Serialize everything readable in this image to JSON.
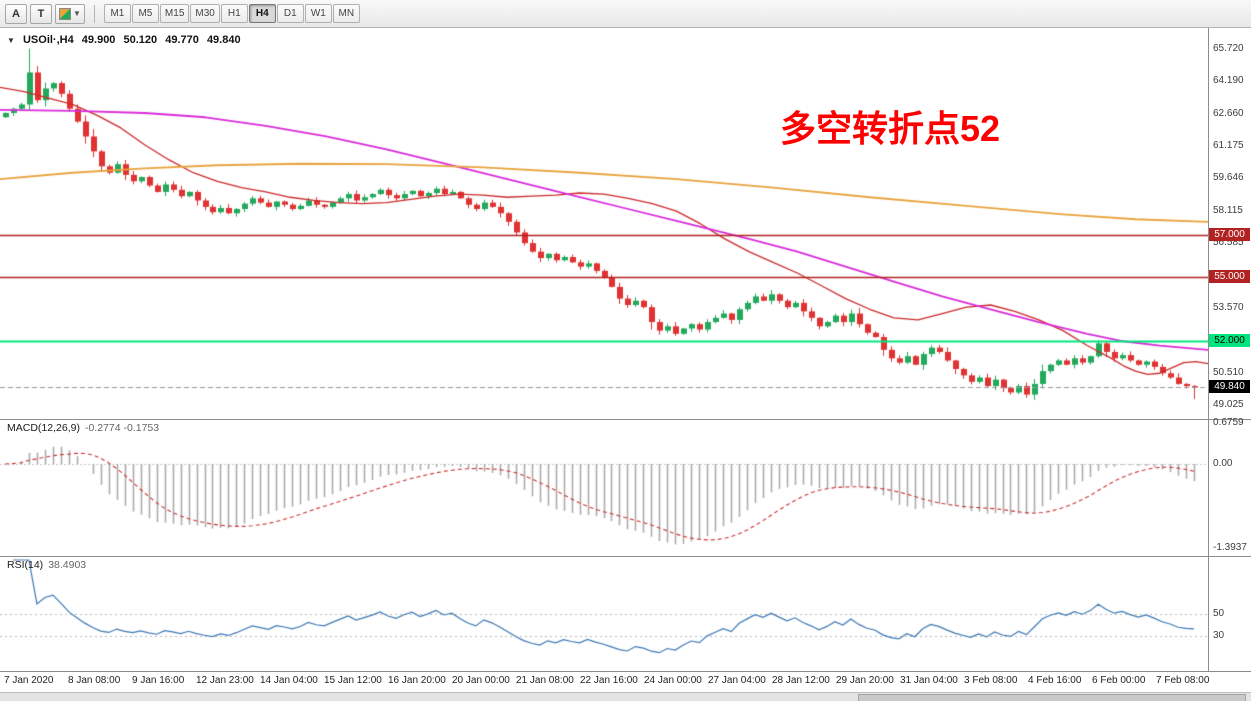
{
  "toolbar": {
    "left_buttons": [
      {
        "id": "a",
        "label": "A"
      },
      {
        "id": "t",
        "label": "T"
      }
    ],
    "timeframes": [
      "M1",
      "M5",
      "M15",
      "M30",
      "H1",
      "H4",
      "D1",
      "W1",
      "MN"
    ],
    "active_timeframe": "H4"
  },
  "chart": {
    "header": {
      "collapse_icon": "▼",
      "symbol": "USOil·,H4",
      "open": "49.900",
      "high": "50.120",
      "low": "49.770",
      "close": "49.840"
    },
    "annotation": "多空转折点52",
    "annotation_color": "#ff0000",
    "price_axis_labels": [
      "65.720",
      "64.190",
      "62.660",
      "61.175",
      "59.646",
      "58.115",
      "56.585",
      "55.055",
      "53.570",
      "52.040",
      "50.510",
      "49.025"
    ],
    "hlines": [
      {
        "price": 57.0,
        "label": "57.000",
        "color": "#b22222",
        "text_color": "#ffffff",
        "line_width": 1.4
      },
      {
        "price": 55.0,
        "label": "55.000",
        "color": "#b22222",
        "text_color": "#ffffff",
        "line_width": 1.4
      },
      {
        "price": 52.0,
        "label": "52.000",
        "color": "#00e57d",
        "text_color": "#000000",
        "line_width": 2.2
      }
    ],
    "current_price": {
      "value": 49.84,
      "label": "49.840",
      "bg": "#000000",
      "text_color": "#ffffff"
    }
  },
  "macd": {
    "label": "MACD(12,26,9)",
    "values_text": "-0.2774 -0.1753",
    "axis_labels": [
      "0.6759",
      "0.00",
      "-1.3937"
    ],
    "fast": 12,
    "slow": 26,
    "signal": 9,
    "histogram_color": "#ababab",
    "signal_color": "#cc3333"
  },
  "rsi": {
    "label": "RSI(14)",
    "value_text": "38.4903",
    "period": 14,
    "levels": [
      50,
      30
    ],
    "line_color": "#3c78b4"
  },
  "time_axis": [
    "7 Jan 2020",
    "8 Jan 08:00",
    "9 Jan 16:00",
    "12 Jan 23:00",
    "14 Jan 04:00",
    "15 Jan 12:00",
    "16 Jan 20:00",
    "20 Jan 00:00",
    "21 Jan 08:00",
    "22 Jan 16:00",
    "24 Jan 00:00",
    "27 Jan 04:00",
    "28 Jan 12:00",
    "29 Jan 20:00",
    "31 Jan 04:00",
    "3 Feb 08:00",
    "4 Feb 16:00",
    "6 Feb 00:00",
    "7 Feb 08:00"
  ],
  "chart_data": {
    "type": "candlestick",
    "symbol": "USOil",
    "timeframe": "H4",
    "price_range": {
      "top": 66.45,
      "bottom": 48.45
    },
    "first_open": 62.5,
    "up_color": "#22a95c",
    "down_color": "#e03232",
    "candles_close": [
      62.7,
      62.9,
      63.1,
      64.6,
      63.3,
      63.85,
      64.1,
      63.6,
      62.9,
      62.3,
      61.6,
      60.9,
      60.2,
      59.9,
      60.3,
      59.8,
      59.5,
      59.7,
      59.3,
      59.0,
      59.35,
      59.1,
      58.8,
      59.0,
      58.6,
      58.3,
      58.05,
      58.25,
      58.0,
      58.2,
      58.45,
      58.7,
      58.5,
      58.3,
      58.55,
      58.4,
      58.2,
      58.35,
      58.6,
      58.4,
      58.3,
      58.5,
      58.7,
      58.9,
      58.6,
      58.75,
      58.9,
      59.1,
      58.85,
      58.7,
      58.9,
      59.05,
      58.8,
      58.95,
      59.15,
      58.9,
      59.0,
      58.7,
      58.4,
      58.2,
      58.5,
      58.3,
      58.0,
      57.6,
      57.1,
      56.6,
      56.2,
      55.9,
      56.1,
      55.8,
      55.95,
      55.7,
      55.5,
      55.65,
      55.3,
      55.0,
      54.55,
      54.0,
      53.7,
      53.9,
      53.6,
      52.9,
      52.5,
      52.7,
      52.35,
      52.6,
      52.8,
      52.55,
      52.9,
      53.1,
      53.3,
      53.0,
      53.5,
      53.8,
      54.1,
      53.9,
      54.2,
      53.9,
      53.6,
      53.8,
      53.4,
      53.1,
      52.7,
      52.9,
      53.2,
      52.9,
      53.3,
      52.8,
      52.4,
      52.2,
      51.6,
      51.2,
      51.0,
      51.3,
      50.9,
      51.4,
      51.7,
      51.5,
      51.1,
      50.7,
      50.4,
      50.1,
      50.3,
      49.9,
      50.2,
      49.8,
      49.6,
      49.9,
      49.5,
      50.0,
      50.6,
      50.9,
      51.1,
      50.9,
      51.2,
      51.0,
      51.3,
      51.9,
      51.5,
      51.2,
      51.35,
      51.1,
      50.9,
      51.05,
      50.8,
      50.5,
      50.3,
      50.0,
      49.9,
      49.84
    ],
    "wick_overrides": {
      "3": {
        "h": 65.72
      },
      "4": {
        "h": 64.9
      },
      "128": {
        "l": 49.35
      },
      "137": {
        "h": 52.05
      },
      "149": {
        "l": 49.3
      }
    },
    "moving_averages": [
      {
        "name": "ma-fast",
        "color": "#cc2a2a",
        "width": 1.3,
        "points": [
          [
            0.0,
            63.9
          ],
          [
            0.02,
            63.7
          ],
          [
            0.04,
            63.4
          ],
          [
            0.06,
            63.1
          ],
          [
            0.08,
            62.6
          ],
          [
            0.1,
            62.0
          ],
          [
            0.12,
            61.2
          ],
          [
            0.14,
            60.5
          ],
          [
            0.16,
            59.9
          ],
          [
            0.18,
            59.5
          ],
          [
            0.2,
            59.2
          ],
          [
            0.22,
            59.0
          ],
          [
            0.24,
            58.75
          ],
          [
            0.26,
            58.6
          ],
          [
            0.28,
            58.5
          ],
          [
            0.3,
            58.45
          ],
          [
            0.32,
            58.5
          ],
          [
            0.34,
            58.65
          ],
          [
            0.36,
            58.8
          ],
          [
            0.38,
            58.9
          ],
          [
            0.4,
            58.85
          ],
          [
            0.42,
            58.75
          ],
          [
            0.44,
            58.8
          ],
          [
            0.46,
            58.85
          ],
          [
            0.48,
            58.95
          ],
          [
            0.5,
            58.9
          ],
          [
            0.52,
            58.7
          ],
          [
            0.54,
            58.45
          ],
          [
            0.56,
            58.1
          ],
          [
            0.58,
            57.5
          ],
          [
            0.6,
            56.8
          ],
          [
            0.62,
            56.2
          ],
          [
            0.64,
            55.7
          ],
          [
            0.66,
            55.2
          ],
          [
            0.68,
            54.6
          ],
          [
            0.7,
            54.0
          ],
          [
            0.72,
            53.5
          ],
          [
            0.74,
            53.1
          ],
          [
            0.76,
            53.0
          ],
          [
            0.78,
            53.3
          ],
          [
            0.8,
            53.6
          ],
          [
            0.82,
            53.7
          ],
          [
            0.84,
            53.4
          ],
          [
            0.86,
            53.0
          ],
          [
            0.88,
            52.5
          ],
          [
            0.9,
            51.8
          ],
          [
            0.92,
            51.2
          ],
          [
            0.93,
            50.85
          ],
          [
            0.94,
            50.6
          ],
          [
            0.95,
            50.45
          ],
          [
            0.96,
            50.5
          ],
          [
            0.97,
            50.75
          ],
          [
            0.98,
            51.0
          ],
          [
            0.99,
            51.05
          ],
          [
            1.0,
            50.95
          ]
        ]
      },
      {
        "name": "ma-medium",
        "color": "#d92bd9",
        "width": 1.8,
        "points": [
          [
            0.0,
            62.85
          ],
          [
            0.06,
            62.8
          ],
          [
            0.12,
            62.7
          ],
          [
            0.17,
            62.5
          ],
          [
            0.22,
            62.1
          ],
          [
            0.27,
            61.6
          ],
          [
            0.32,
            61.0
          ],
          [
            0.37,
            60.3
          ],
          [
            0.42,
            59.6
          ],
          [
            0.47,
            58.9
          ],
          [
            0.52,
            58.2
          ],
          [
            0.57,
            57.5
          ],
          [
            0.62,
            56.8
          ],
          [
            0.66,
            56.2
          ],
          [
            0.7,
            55.5
          ],
          [
            0.74,
            54.8
          ],
          [
            0.78,
            54.1
          ],
          [
            0.82,
            53.5
          ],
          [
            0.86,
            52.9
          ],
          [
            0.9,
            52.35
          ],
          [
            0.93,
            52.0
          ],
          [
            0.96,
            51.8
          ],
          [
            1.0,
            51.6
          ]
        ]
      },
      {
        "name": "ma-slow",
        "color": "#e8a33d",
        "width": 1.8,
        "points": [
          [
            0.0,
            59.6
          ],
          [
            0.06,
            59.9
          ],
          [
            0.12,
            60.1
          ],
          [
            0.18,
            60.25
          ],
          [
            0.25,
            60.32
          ],
          [
            0.32,
            60.3
          ],
          [
            0.4,
            60.15
          ],
          [
            0.48,
            59.9
          ],
          [
            0.56,
            59.6
          ],
          [
            0.64,
            59.2
          ],
          [
            0.72,
            58.75
          ],
          [
            0.8,
            58.35
          ],
          [
            0.88,
            57.95
          ],
          [
            0.94,
            57.72
          ],
          [
            1.0,
            57.6
          ]
        ]
      }
    ]
  }
}
